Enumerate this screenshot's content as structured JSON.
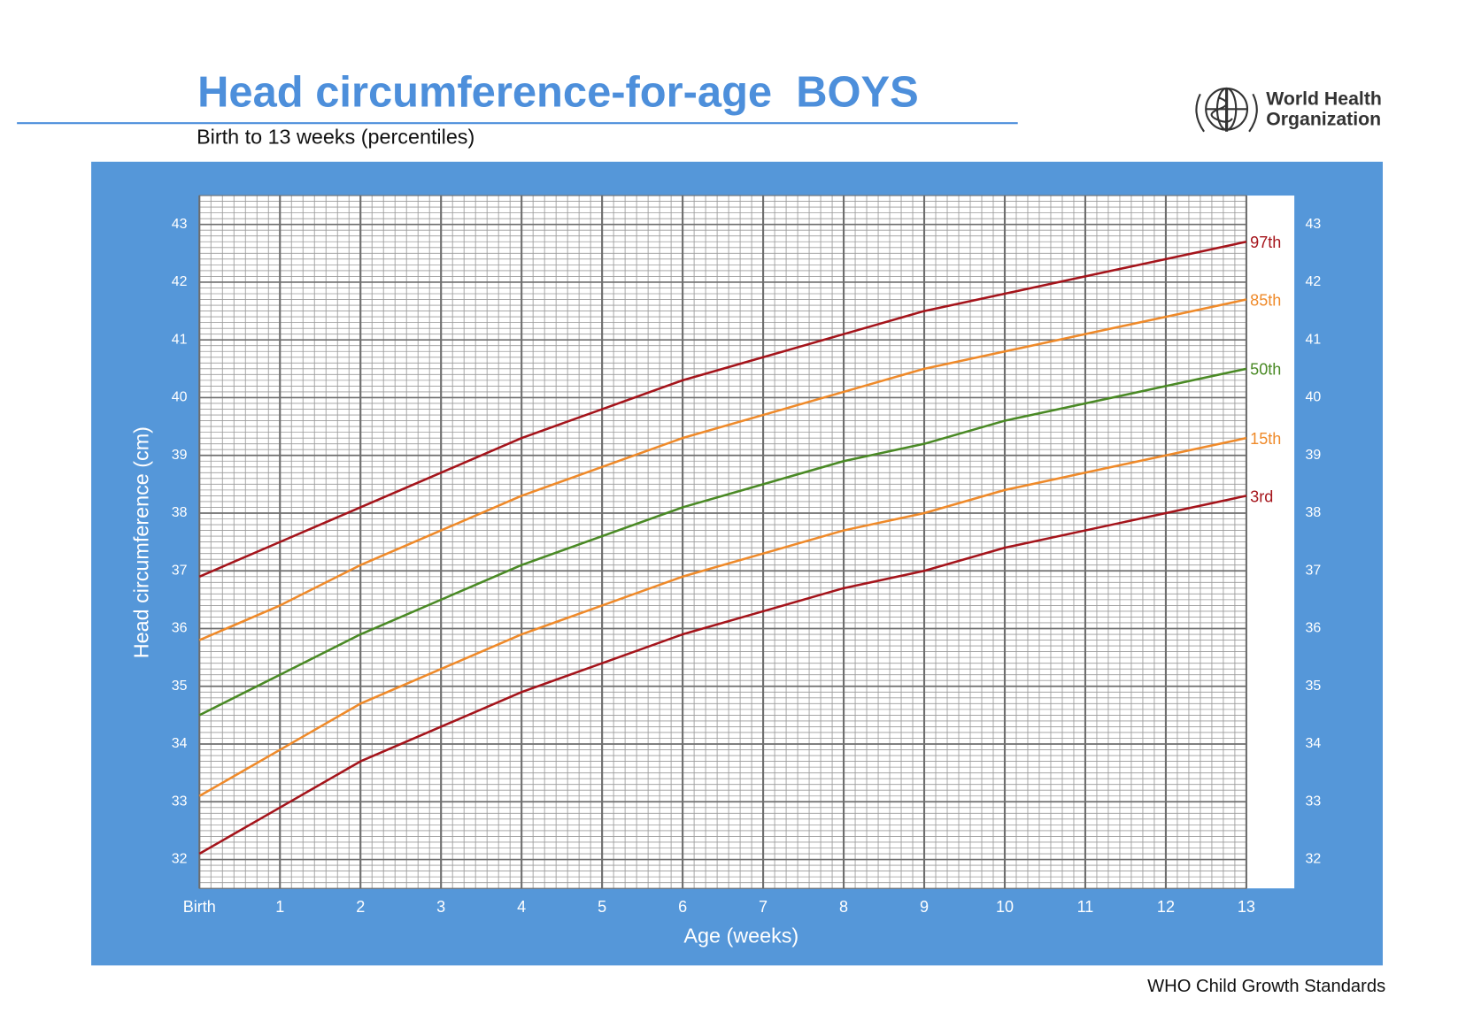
{
  "chart_data": {
    "type": "line",
    "title": "Head circumference-for-age  BOYS",
    "subtitle": "Birth to 13 weeks (percentiles)",
    "organization": [
      "World Health",
      "Organization"
    ],
    "source": "WHO Child Growth Standards",
    "x_label": "Age (weeks)",
    "y_label": "Head circumference (cm)",
    "x": [
      0,
      1,
      2,
      3,
      4,
      5,
      6,
      7,
      8,
      9,
      10,
      11,
      12,
      13
    ],
    "xlim": [
      0,
      13
    ],
    "xticks": [
      {
        "value": 0,
        "label": "Birth"
      },
      1,
      2,
      3,
      4,
      5,
      6,
      7,
      8,
      9,
      10,
      11,
      12,
      13
    ],
    "ylim": [
      31.5,
      43.5
    ],
    "yticks": [
      32,
      33,
      34,
      35,
      36,
      37,
      38,
      39,
      40,
      41,
      42,
      43
    ],
    "grid": true,
    "series": [
      {
        "name": "97th",
        "color": "#a5141b",
        "values": [
          36.9,
          37.5,
          38.1,
          38.7,
          39.3,
          39.8,
          40.3,
          40.7,
          41.1,
          41.5,
          41.8,
          42.1,
          42.4,
          42.7
        ]
      },
      {
        "name": "85th",
        "color": "#ef8a2a",
        "values": [
          35.8,
          36.4,
          37.1,
          37.7,
          38.3,
          38.8,
          39.3,
          39.7,
          40.1,
          40.5,
          40.8,
          41.1,
          41.4,
          41.7
        ]
      },
      {
        "name": "50th",
        "color": "#4a8a25",
        "values": [
          34.5,
          35.2,
          35.9,
          36.5,
          37.1,
          37.6,
          38.1,
          38.5,
          38.9,
          39.2,
          39.6,
          39.9,
          40.2,
          40.5
        ]
      },
      {
        "name": "15th",
        "color": "#ef8a2a",
        "values": [
          33.1,
          33.9,
          34.7,
          35.3,
          35.9,
          36.4,
          36.9,
          37.3,
          37.7,
          38.0,
          38.4,
          38.7,
          39.0,
          39.3
        ]
      },
      {
        "name": "3rd",
        "color": "#a5141b",
        "values": [
          32.1,
          32.9,
          33.7,
          34.3,
          34.9,
          35.4,
          35.9,
          36.3,
          36.7,
          37.0,
          37.4,
          37.7,
          38.0,
          38.3
        ]
      }
    ]
  }
}
